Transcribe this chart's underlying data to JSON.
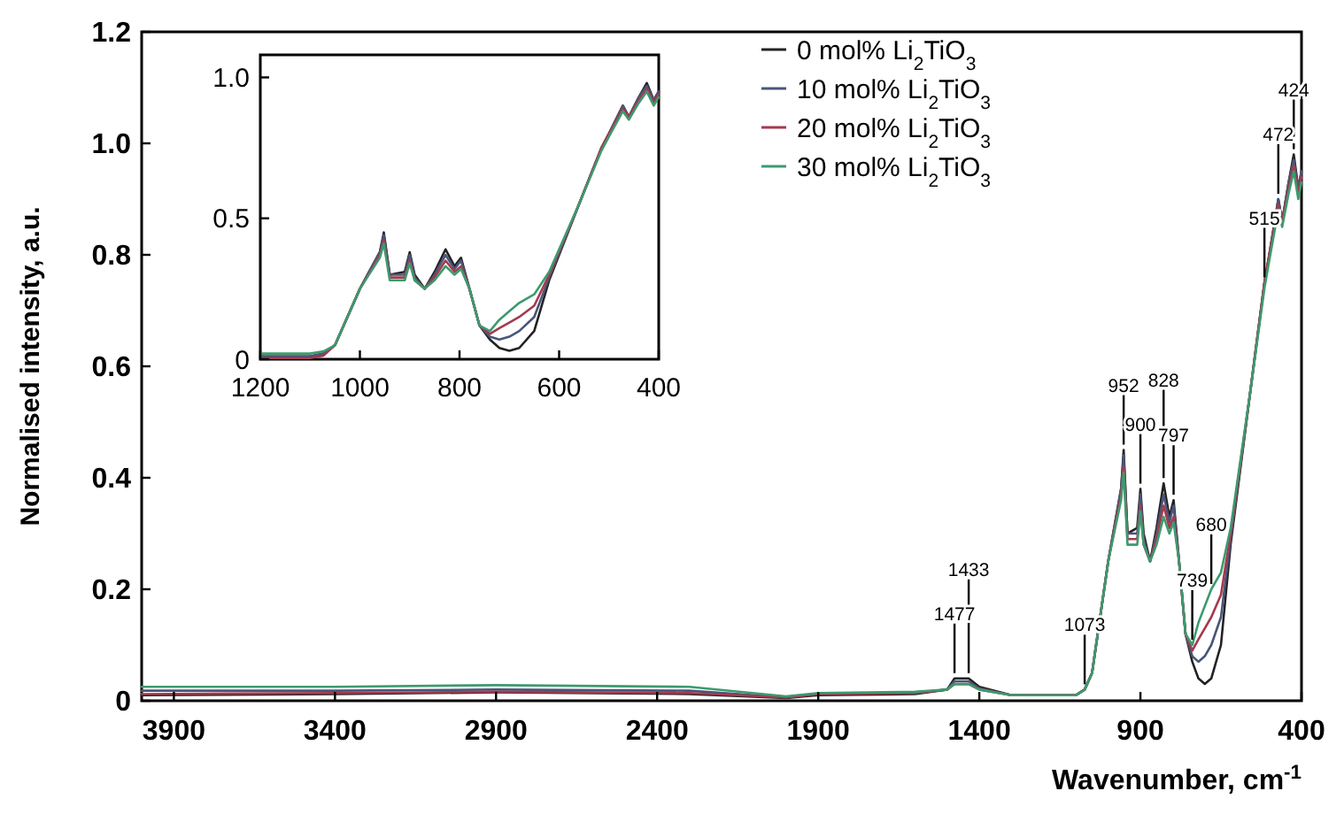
{
  "chart_data": [
    {
      "type": "line",
      "xlabel": "Wavenumber, cm$^{-1}$",
      "ylabel": "Normalised intensity, a.u.",
      "xlim": [
        4000,
        400
      ],
      "xticks": [
        3900,
        3400,
        2900,
        2400,
        1900,
        1400,
        900,
        400
      ],
      "ylim": [
        0,
        1.2
      ],
      "yticks": [
        0,
        {
          "value": 0.2,
          "label": "0.2"
        },
        {
          "value": 0.4,
          "label": "0.4"
        },
        {
          "value": 0.6,
          "label": "0.6"
        },
        {
          "value": 0.8,
          "label": "0.8"
        },
        {
          "value": 1,
          "label": "1.0"
        },
        {
          "value": 1.2,
          "label": "1.2"
        }
      ],
      "legend": "top right",
      "grid": false,
      "x": [
        4000,
        3400,
        2900,
        2300,
        2000,
        1900,
        1600,
        1500,
        1477,
        1433,
        1400,
        1300,
        1100,
        1073,
        1050,
        1000,
        960,
        952,
        940,
        910,
        900,
        890,
        870,
        850,
        828,
        810,
        797,
        780,
        760,
        739,
        720,
        700,
        680,
        650,
        620,
        560,
        515,
        500,
        472,
        460,
        440,
        424,
        410,
        400
      ],
      "series": [
        {
          "name": "0 mol% Li$_{2}$TiO$_{3}$",
          "color": "#222222",
          "values": [
            0.01,
            0.012,
            0.015,
            0.012,
            0.005,
            0.01,
            0.012,
            0.02,
            0.04,
            0.04,
            0.025,
            0.01,
            0.01,
            0.02,
            0.05,
            0.25,
            0.38,
            0.45,
            0.3,
            0.31,
            0.38,
            0.3,
            0.25,
            0.31,
            0.39,
            0.33,
            0.36,
            0.25,
            0.12,
            0.07,
            0.04,
            0.03,
            0.04,
            0.1,
            0.28,
            0.55,
            0.75,
            0.8,
            0.9,
            0.86,
            0.93,
            0.98,
            0.92,
            0.95
          ]
        },
        {
          "name": "10 mol% Li$_{2}$TiO$_{3}$",
          "color": "#4a5578",
          "values": [
            0.018,
            0.018,
            0.02,
            0.018,
            0.006,
            0.012,
            0.014,
            0.02,
            0.035,
            0.035,
            0.022,
            0.01,
            0.01,
            0.02,
            0.05,
            0.25,
            0.38,
            0.44,
            0.3,
            0.3,
            0.37,
            0.29,
            0.25,
            0.3,
            0.37,
            0.32,
            0.35,
            0.25,
            0.12,
            0.08,
            0.07,
            0.08,
            0.1,
            0.15,
            0.29,
            0.55,
            0.75,
            0.8,
            0.9,
            0.86,
            0.93,
            0.97,
            0.92,
            0.95
          ]
        },
        {
          "name": "20 mol% Li$_{2}$TiO$_{3}$",
          "color": "#a33a4e",
          "values": [
            0.012,
            0.014,
            0.016,
            0.014,
            0.006,
            0.012,
            0.014,
            0.02,
            0.03,
            0.03,
            0.02,
            0.01,
            0.01,
            0.02,
            0.05,
            0.25,
            0.37,
            0.42,
            0.29,
            0.29,
            0.35,
            0.28,
            0.25,
            0.29,
            0.35,
            0.31,
            0.33,
            0.25,
            0.12,
            0.09,
            0.11,
            0.13,
            0.15,
            0.19,
            0.3,
            0.55,
            0.75,
            0.8,
            0.89,
            0.86,
            0.92,
            0.96,
            0.91,
            0.94
          ]
        },
        {
          "name": "30 mol% Li$_{2}$TiO$_{3}$",
          "color": "#3d9a6e",
          "values": [
            0.025,
            0.025,
            0.028,
            0.025,
            0.008,
            0.014,
            0.016,
            0.02,
            0.03,
            0.03,
            0.02,
            0.01,
            0.01,
            0.02,
            0.05,
            0.25,
            0.36,
            0.41,
            0.28,
            0.28,
            0.34,
            0.28,
            0.25,
            0.28,
            0.33,
            0.3,
            0.32,
            0.25,
            0.12,
            0.1,
            0.14,
            0.17,
            0.2,
            0.23,
            0.31,
            0.55,
            0.74,
            0.79,
            0.88,
            0.85,
            0.91,
            0.95,
            0.9,
            0.93
          ]
        }
      ],
      "annotations": [
        {
          "text": "1477",
          "x": 1477,
          "y": 0.04
        },
        {
          "text": "1433",
          "x": 1433,
          "y": 0.04
        },
        {
          "text": "1073",
          "x": 1073,
          "y": 0.02
        },
        {
          "text": "952",
          "x": 952,
          "y": 0.45
        },
        {
          "text": "900",
          "x": 900,
          "y": 0.38
        },
        {
          "text": "828",
          "x": 828,
          "y": 0.39
        },
        {
          "text": "797",
          "x": 797,
          "y": 0.36
        },
        {
          "text": "739",
          "x": 739,
          "y": 0.1
        },
        {
          "text": "680",
          "x": 680,
          "y": 0.2
        },
        {
          "text": "515",
          "x": 515,
          "y": 0.75
        },
        {
          "text": "472",
          "x": 472,
          "y": 0.9
        },
        {
          "text": "424",
          "x": 424,
          "y": 0.98
        }
      ]
    },
    {
      "type": "line",
      "xlim": [
        1200,
        400
      ],
      "xticks": [
        1200,
        1000,
        800,
        600,
        400
      ],
      "ylim": [
        0,
        1.08
      ],
      "yticks": [
        0,
        {
          "value": 0.5,
          "label": "0.5"
        },
        {
          "value": 1,
          "label": "1.0"
        }
      ],
      "grid": false,
      "x": [
        1200,
        1100,
        1073,
        1050,
        1000,
        960,
        952,
        940,
        910,
        900,
        890,
        870,
        850,
        828,
        810,
        797,
        780,
        760,
        739,
        720,
        700,
        680,
        650,
        620,
        560,
        515,
        500,
        472,
        460,
        440,
        424,
        410,
        400
      ],
      "series": [
        {
          "color": "#222222",
          "values": [
            0.01,
            0.01,
            0.02,
            0.05,
            0.25,
            0.38,
            0.45,
            0.3,
            0.31,
            0.38,
            0.3,
            0.25,
            0.31,
            0.39,
            0.33,
            0.36,
            0.25,
            0.12,
            0.07,
            0.04,
            0.03,
            0.04,
            0.1,
            0.28,
            0.55,
            0.75,
            0.8,
            0.9,
            0.86,
            0.93,
            0.98,
            0.92,
            0.95
          ]
        },
        {
          "color": "#4a5578",
          "values": [
            0.01,
            0.01,
            0.02,
            0.05,
            0.25,
            0.38,
            0.44,
            0.3,
            0.3,
            0.37,
            0.29,
            0.25,
            0.3,
            0.37,
            0.32,
            0.35,
            0.25,
            0.12,
            0.08,
            0.07,
            0.08,
            0.1,
            0.15,
            0.29,
            0.55,
            0.75,
            0.8,
            0.9,
            0.86,
            0.93,
            0.97,
            0.92,
            0.95
          ]
        },
        {
          "color": "#a33a4e",
          "values": [
            0.004,
            0.004,
            0.013,
            0.05,
            0.25,
            0.37,
            0.42,
            0.29,
            0.29,
            0.35,
            0.28,
            0.25,
            0.29,
            0.35,
            0.31,
            0.33,
            0.25,
            0.12,
            0.09,
            0.11,
            0.13,
            0.15,
            0.19,
            0.3,
            0.55,
            0.75,
            0.8,
            0.89,
            0.86,
            0.92,
            0.96,
            0.91,
            0.94
          ]
        },
        {
          "color": "#3d9a6e",
          "values": [
            0.02,
            0.02,
            0.028,
            0.05,
            0.25,
            0.36,
            0.41,
            0.28,
            0.28,
            0.34,
            0.28,
            0.25,
            0.28,
            0.33,
            0.3,
            0.32,
            0.25,
            0.12,
            0.1,
            0.14,
            0.17,
            0.2,
            0.23,
            0.31,
            0.55,
            0.74,
            0.79,
            0.88,
            0.85,
            0.91,
            0.95,
            0.9,
            0.93
          ]
        }
      ]
    }
  ]
}
